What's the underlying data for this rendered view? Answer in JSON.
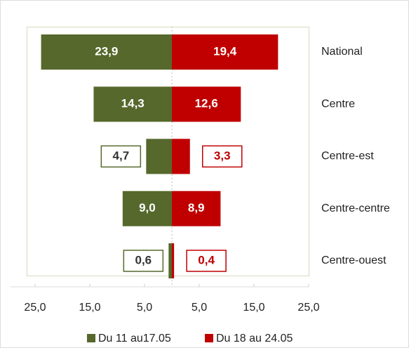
{
  "chart_data": {
    "type": "butterfly",
    "categories": [
      "National",
      "Centre",
      "Centre-est",
      "Centre-centre",
      "Centre-ouest"
    ],
    "series": [
      {
        "name": "Du 11 au17.05",
        "color": "#56682c",
        "values": [
          23.9,
          14.3,
          4.7,
          9.0,
          0.6
        ],
        "value_labels": [
          "23,9",
          "14,3",
          "4,7",
          "9,0",
          "0,6"
        ]
      },
      {
        "name": "Du 18 au 24.05",
        "color": "#c00000",
        "values": [
          19.4,
          12.6,
          3.3,
          8.9,
          0.4
        ],
        "value_labels": [
          "19,4",
          "12,6",
          "3,3",
          "8,9",
          "0,4"
        ]
      }
    ],
    "xlim": [
      -25,
      25
    ],
    "xticks": [
      {
        "value": -25,
        "label": "25,0"
      },
      {
        "value": -15,
        "label": "15,0"
      },
      {
        "value": -5,
        "label": "5,0"
      },
      {
        "value": 5,
        "label": "5,0"
      },
      {
        "value": 15,
        "label": "15,0"
      },
      {
        "value": 25,
        "label": "25,0"
      }
    ],
    "legend": "bottom"
  }
}
